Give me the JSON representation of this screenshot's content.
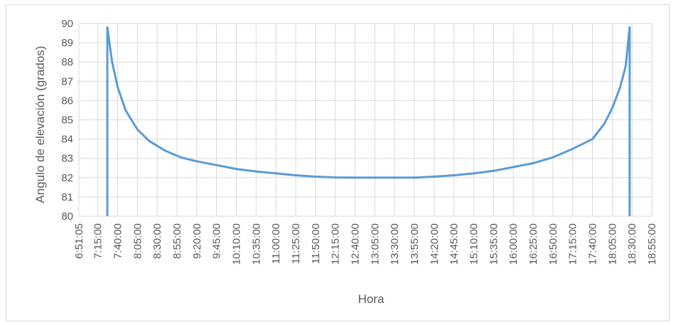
{
  "chart_data": {
    "type": "line",
    "title": "",
    "xlabel": "Hora",
    "ylabel": "Angulo de elevación (grados)",
    "ylim": [
      80,
      90
    ],
    "y_ticks": [
      "80",
      "81",
      "82",
      "83",
      "84",
      "85",
      "86",
      "87",
      "88",
      "89",
      "90"
    ],
    "x_ticks": [
      "6:51:05",
      "7:15:00",
      "7:40:00",
      "8:05:00",
      "8:30:00",
      "8:55:00",
      "9:20:00",
      "9:45:00",
      "10:10:00",
      "10:35:00",
      "11:00:00",
      "11:25:00",
      "11:50:00",
      "12:15:00",
      "12:40:00",
      "13:05:00",
      "13:30:00",
      "13:55:00",
      "14:20:00",
      "14:45:00",
      "15:10:00",
      "15:35:00",
      "16:00:00",
      "16:25:00",
      "16:50:00",
      "17:15:00",
      "17:40:00",
      "18:05:00",
      "18:30:00",
      "18:55:00"
    ],
    "grid": true,
    "legend": "none",
    "line_color": "#5b9bd5",
    "series": [
      {
        "x": [
          "7:27:00",
          "7:27:00",
          "7:33:00",
          "7:40:00",
          "7:50:00",
          "8:05:00",
          "8:20:00",
          "8:40:00",
          "9:00:00",
          "9:20:00",
          "9:45:00",
          "10:10:00",
          "10:35:00",
          "11:00:00",
          "11:25:00",
          "11:50:00",
          "12:15:00",
          "12:40:00",
          "13:05:00",
          "13:30:00",
          "13:55:00",
          "14:20:00",
          "14:45:00",
          "15:10:00",
          "15:35:00",
          "16:00:00",
          "16:25:00",
          "16:50:00",
          "17:15:00",
          "17:40:00",
          "17:55:00",
          "18:05:00",
          "18:15:00",
          "18:22:00",
          "18:27:00",
          "18:27:00"
        ],
        "y": [
          80,
          89.8,
          88.0,
          86.7,
          85.5,
          84.5,
          83.9,
          83.4,
          83.05,
          82.85,
          82.65,
          82.45,
          82.32,
          82.22,
          82.12,
          82.05,
          82.01,
          82.0,
          82.0,
          82.0,
          82.0,
          82.05,
          82.12,
          82.22,
          82.35,
          82.55,
          82.75,
          83.05,
          83.5,
          84.0,
          84.8,
          85.6,
          86.7,
          87.8,
          89.8,
          80
        ]
      }
    ]
  }
}
